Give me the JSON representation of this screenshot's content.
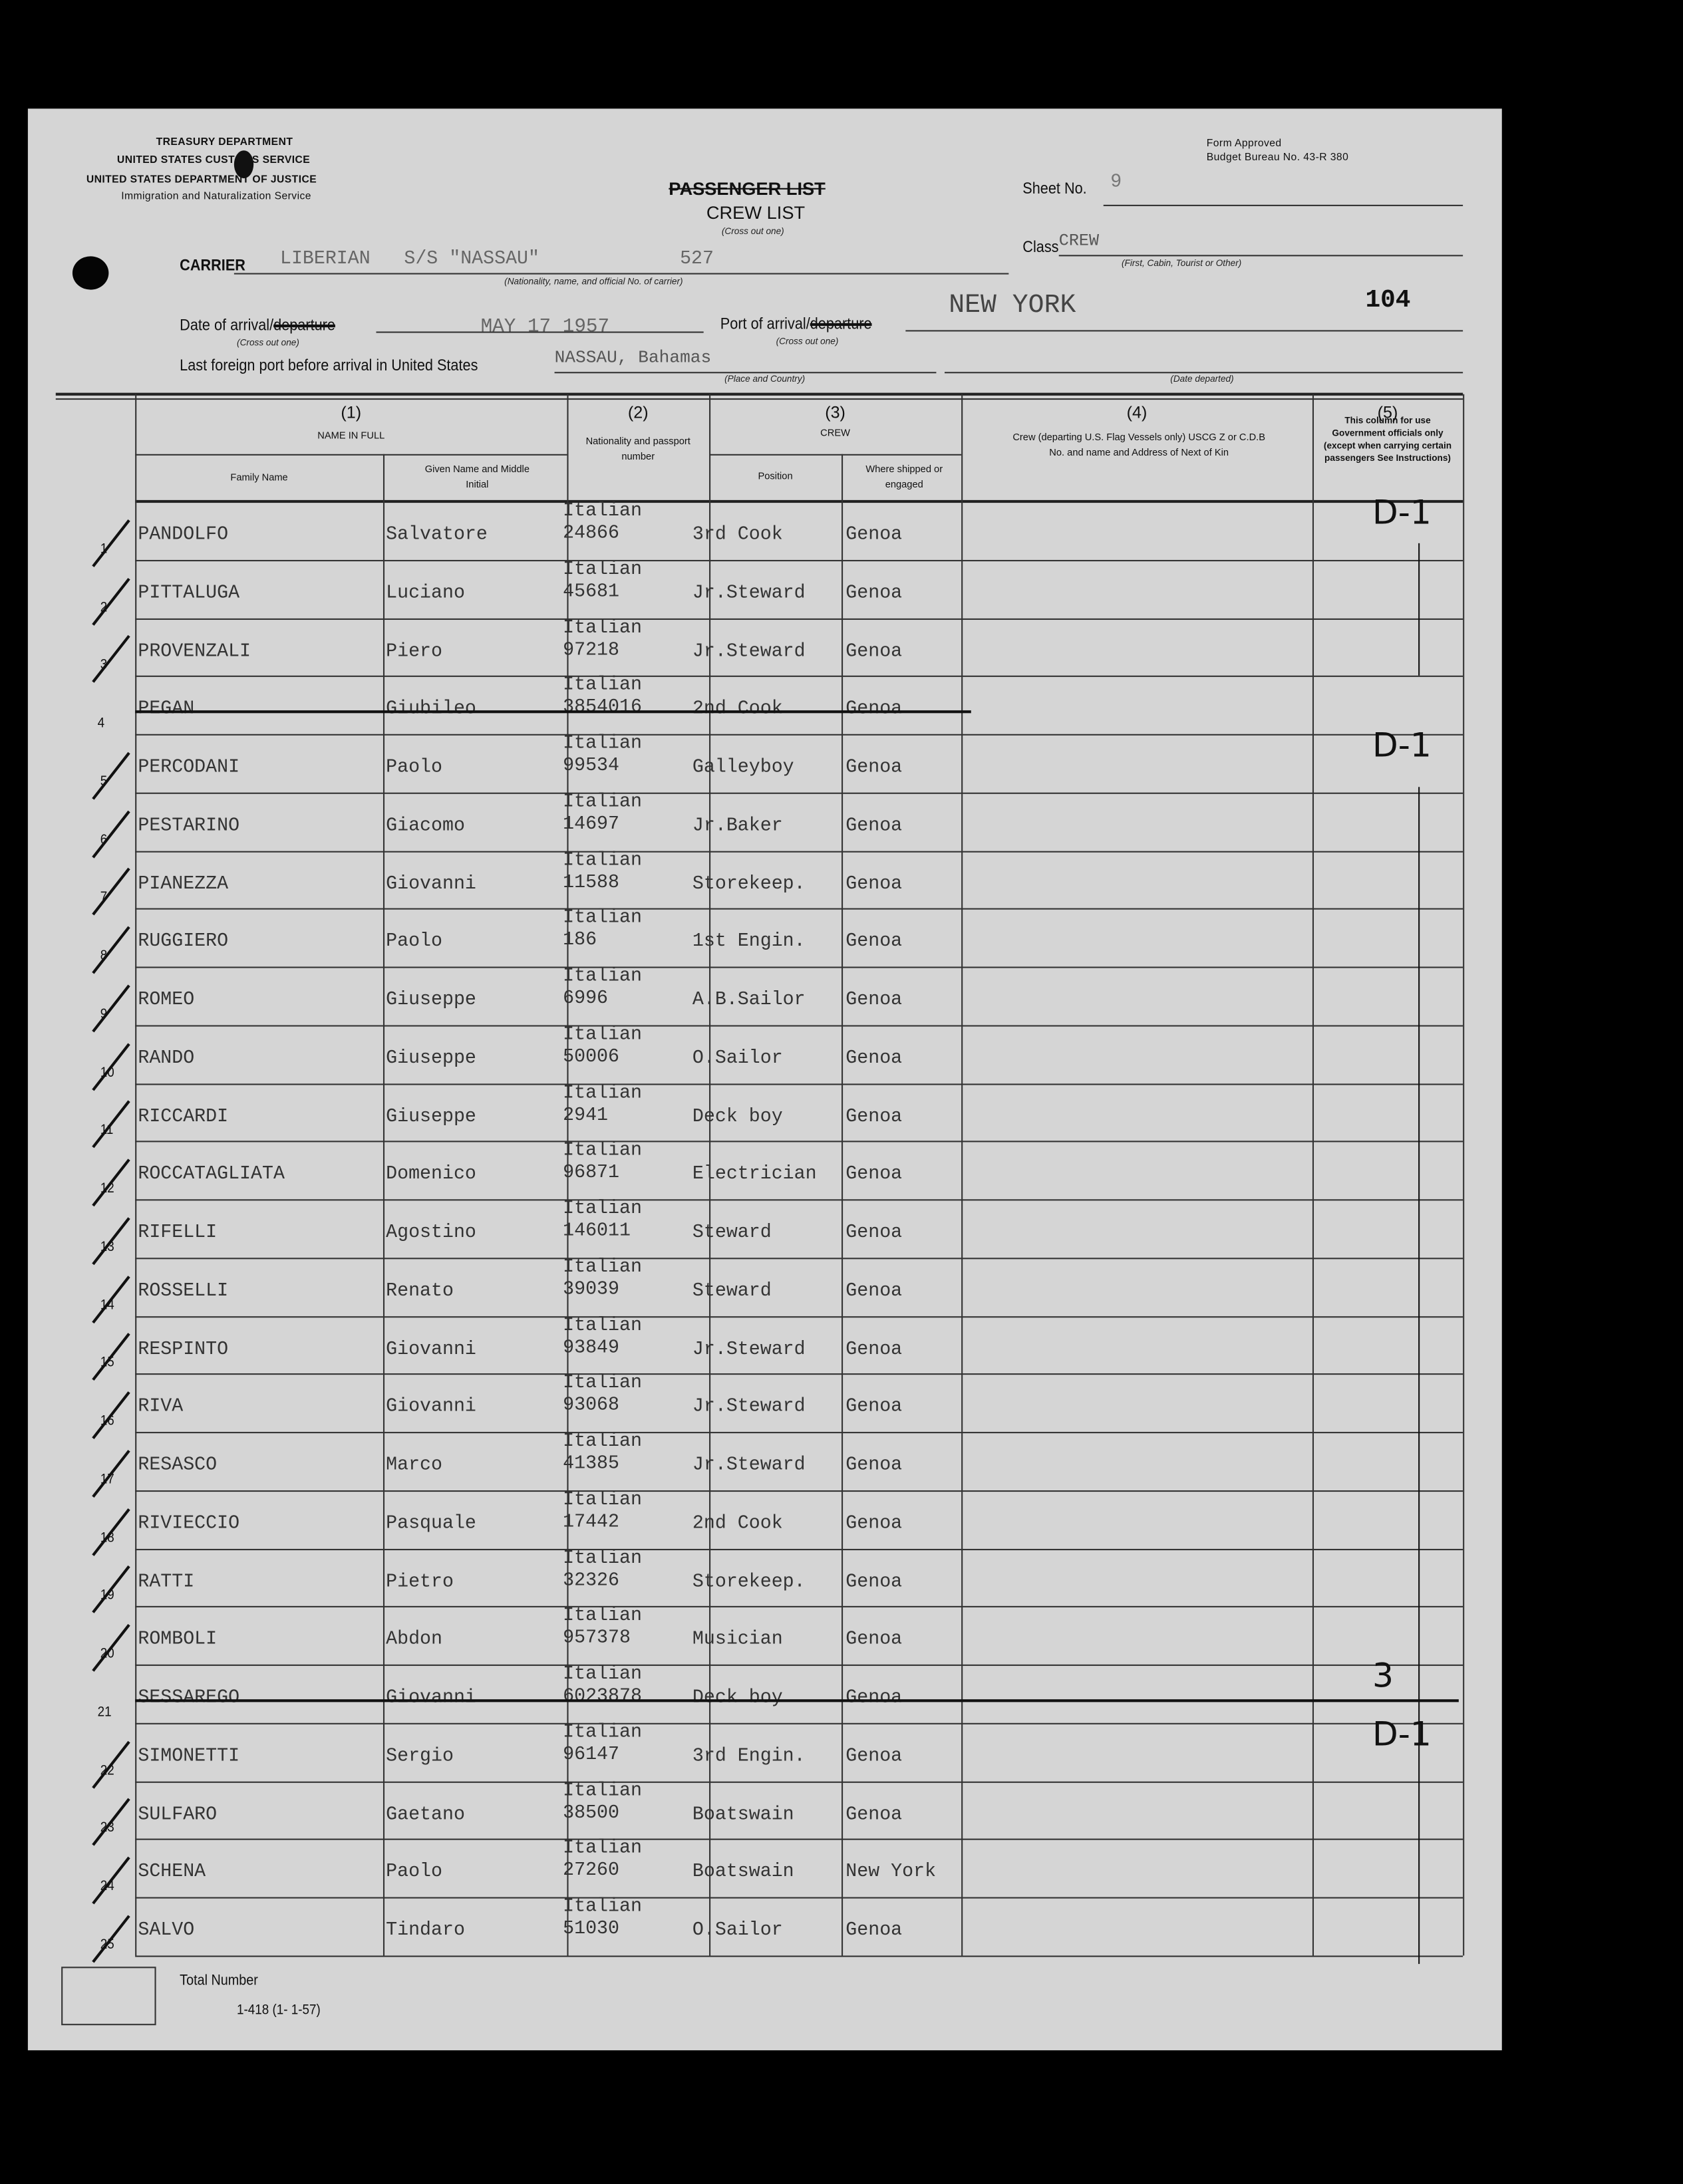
{
  "agency": {
    "line1": "TREASURY DEPARTMENT",
    "line2": "UNITED STATES CUSTOMS SERVICE",
    "line3": "UNITED STATES DEPARTMENT OF JUSTICE",
    "line4": "Immigration and Naturalization Service"
  },
  "form_approval": {
    "line1": "Form Approved",
    "line2": "Budget Bureau No. 43-R 380"
  },
  "title": {
    "passenger": "PASSENGER LIST",
    "crew": "CREW LIST",
    "note": "(Cross out one)"
  },
  "sheet": {
    "label": "Sheet No.",
    "value": "9"
  },
  "class": {
    "label": "Class",
    "value": "CREW",
    "hint": "(First, Cabin, Tourist or Other)"
  },
  "carrier": {
    "label": "CARRIER",
    "nationality": "LIBERIAN",
    "name": "S/S \"NASSAU\"",
    "number": "527",
    "hint": "(Nationality, name, and official No. of carrier)"
  },
  "date_of_arrival": {
    "label": "Date of arrival/",
    "struck": "departure",
    "value": "MAY 17 1957",
    "hint": "(Cross out one)"
  },
  "port_of_arrival": {
    "label": "Port of arrival/",
    "struck": "departure",
    "value": "NEW YORK",
    "extra": "104",
    "hint": "(Cross out one)"
  },
  "last_port": {
    "label": "Last foreign port before arrival in United States",
    "value": "NASSAU, Bahamas",
    "hint_place": "(Place and Country)",
    "hint_date": "(Date departed)"
  },
  "columns": {
    "c1_num": "(1)",
    "c1_title": "NAME IN FULL",
    "c1_family": "Family Name",
    "c1_given": "Given Name and Middle Initial",
    "c2_num": "(2)",
    "c2_title": "Nationality and passport number",
    "c3_num": "(3)",
    "c3_title": "CREW",
    "c3_position": "Position",
    "c3_where": "Where shipped or engaged",
    "c4_num": "(4)",
    "c4_title": "Crew (departing U.S. Flag Vessels only) USCG Z or C.D.B No. and name and Address of Next of Kin",
    "c5_num": "(5)",
    "c5_title": "This column for use Government officials only (except when carrying certain passengers See Instructions)"
  },
  "rows": [
    {
      "n": "1",
      "family": "PANDOLFO",
      "given": "Salvatore",
      "nationality": "Italian",
      "passport": "24866",
      "position": "3rd Cook",
      "where": "Genoa",
      "checked": true,
      "struck": false
    },
    {
      "n": "2",
      "family": "PITTALUGA",
      "given": "Luciano",
      "nationality": "Italian",
      "passport": "45681",
      "position": "Jr.Steward",
      "where": "Genoa",
      "checked": true,
      "struck": false
    },
    {
      "n": "3",
      "family": "PROVENZALI",
      "given": "Piero",
      "nationality": "Italian",
      "passport": "97218",
      "position": "Jr.Steward",
      "where": "Genoa",
      "checked": true,
      "struck": false
    },
    {
      "n": "4",
      "family": "PEGAN",
      "given": "Giubileo",
      "nationality": "Italian",
      "passport": "3854016",
      "position": "2nd Cook",
      "where": "Genoa",
      "checked": false,
      "struck": true
    },
    {
      "n": "5",
      "family": "PERCODANI",
      "given": "Paolo",
      "nationality": "Italian",
      "passport": "99534",
      "position": "Galleyboy",
      "where": "Genoa",
      "checked": true,
      "struck": false
    },
    {
      "n": "6",
      "family": "PESTARINO",
      "given": "Giacomo",
      "nationality": "Italian",
      "passport": "14697",
      "position": "Jr.Baker",
      "where": "Genoa",
      "checked": true,
      "struck": false
    },
    {
      "n": "7",
      "family": "PIANEZZA",
      "given": "Giovanni",
      "nationality": "Italian",
      "passport": "11588",
      "position": "Storekeep.",
      "where": "Genoa",
      "checked": true,
      "struck": false
    },
    {
      "n": "8",
      "family": "RUGGIERO",
      "given": "Paolo",
      "nationality": "Italian",
      "passport": "186",
      "position": "1st Engin.",
      "where": "Genoa",
      "checked": true,
      "struck": false
    },
    {
      "n": "9",
      "family": "ROMEO",
      "given": "Giuseppe",
      "nationality": "Italian",
      "passport": "6996",
      "position": "A.B.Sailor",
      "where": "Genoa",
      "checked": true,
      "struck": false
    },
    {
      "n": "10",
      "family": "RANDO",
      "given": "Giuseppe",
      "nationality": "Italian",
      "passport": "50006",
      "position": "O.Sailor",
      "where": "Genoa",
      "checked": true,
      "struck": false
    },
    {
      "n": "11",
      "family": "RICCARDI",
      "given": "Giuseppe",
      "nationality": "Italian",
      "passport": "2941",
      "position": "Deck boy",
      "where": "Genoa",
      "checked": true,
      "struck": false
    },
    {
      "n": "12",
      "family": "ROCCATAGLIATA",
      "given": "Domenico",
      "nationality": "Italian",
      "passport": "96871",
      "position": "Electrician",
      "where": "Genoa",
      "checked": true,
      "struck": false
    },
    {
      "n": "13",
      "family": "RIFELLI",
      "given": "Agostino",
      "nationality": "Italian",
      "passport": "146011",
      "position": "Steward",
      "where": "Genoa",
      "checked": true,
      "struck": false
    },
    {
      "n": "14",
      "family": "ROSSELLI",
      "given": "Renato",
      "nationality": "Italian",
      "passport": "39039",
      "position": "Steward",
      "where": "Genoa",
      "checked": true,
      "struck": false
    },
    {
      "n": "15",
      "family": "RESPINTO",
      "given": "Giovanni",
      "nationality": "Italian",
      "passport": "93849",
      "position": "Jr.Steward",
      "where": "Genoa",
      "checked": true,
      "struck": false
    },
    {
      "n": "16",
      "family": "RIVA",
      "given": "Giovanni",
      "nationality": "Italian",
      "passport": "93068",
      "position": "Jr.Steward",
      "where": "Genoa",
      "checked": true,
      "struck": false
    },
    {
      "n": "17",
      "family": "RESASCO",
      "given": "Marco",
      "nationality": "Italian",
      "passport": "41385",
      "position": "Jr.Steward",
      "where": "Genoa",
      "checked": true,
      "struck": false
    },
    {
      "n": "18",
      "family": "RIVIECCIO",
      "given": "Pasquale",
      "nationality": "Italian",
      "passport": "17442",
      "position": "2nd Cook",
      "where": "Genoa",
      "checked": true,
      "struck": false
    },
    {
      "n": "19",
      "family": "RATTI",
      "given": "Pietro",
      "nationality": "Italian",
      "passport": "32326",
      "position": "Storekeep.",
      "where": "Genoa",
      "checked": true,
      "struck": false
    },
    {
      "n": "20",
      "family": "ROMBOLI",
      "given": "Abdon",
      "nationality": "Italian",
      "passport": "957378",
      "position": "Musician",
      "where": "Genoa",
      "checked": true,
      "struck": false
    },
    {
      "n": "21",
      "family": "SESSAREGO",
      "given": "Giovanni",
      "nationality": "Italian",
      "passport": "6023878",
      "position": "Deck boy",
      "where": "Genoa",
      "checked": false,
      "struck": true
    },
    {
      "n": "22",
      "family": "SIMONETTI",
      "given": "Sergio",
      "nationality": "Italian",
      "passport": "96147",
      "position": "3rd Engin.",
      "where": "Genoa",
      "checked": true,
      "struck": false
    },
    {
      "n": "23",
      "family": "SULFARO",
      "given": "Gaetano",
      "nationality": "Italian",
      "passport": "38500",
      "position": "Boatswain",
      "where": "Genoa",
      "checked": true,
      "struck": false
    },
    {
      "n": "24",
      "family": "SCHENA",
      "given": "Paolo",
      "nationality": "Italian",
      "passport": "27260",
      "position": "Boatswain",
      "where": "New York",
      "checked": true,
      "struck": false
    },
    {
      "n": "25",
      "family": "SALVO",
      "given": "Tindaro",
      "nationality": "Italian",
      "passport": "51030",
      "position": "O.Sailor",
      "where": "Genoa",
      "checked": true,
      "struck": false
    }
  ],
  "column5_marks": [
    {
      "row": 1,
      "text": "D-1"
    },
    {
      "row": 5,
      "text": "D-1"
    },
    {
      "row": 21,
      "text": "3"
    },
    {
      "row": 22,
      "text": "D-1"
    }
  ],
  "footer": {
    "total_label": "Total Number",
    "total_value": "",
    "form_number": "1-418 (1- 1-57)"
  }
}
